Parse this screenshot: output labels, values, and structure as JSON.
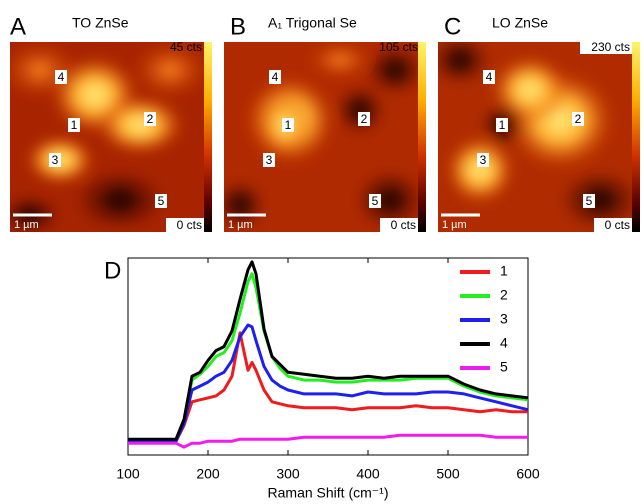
{
  "panels": [
    {
      "letter": "A",
      "title": "TO ZnSe",
      "max_label": "45 cts",
      "min_label": "0 cts",
      "scale_label": "1 µm",
      "points": [
        "4",
        "1",
        "2",
        "3",
        "5"
      ]
    },
    {
      "letter": "B",
      "title": "A₁ Trigonal Se",
      "max_label": "105 cts",
      "min_label": "0 cts",
      "scale_label": "1 µm",
      "points": [
        "4",
        "1",
        "2",
        "3",
        "5"
      ]
    },
    {
      "letter": "C",
      "title": "LO ZnSe",
      "max_label": "230 cts",
      "min_label": "0 cts",
      "scale_label": "1 µm",
      "points": [
        "4",
        "1",
        "2",
        "3",
        "5"
      ]
    }
  ],
  "chart_data": {
    "type": "line",
    "label": "D",
    "x_label": "Raman Shift (cm⁻¹)",
    "x": [
      100,
      120,
      140,
      160,
      170,
      180,
      190,
      200,
      210,
      220,
      230,
      240,
      250,
      255,
      260,
      270,
      280,
      290,
      300,
      320,
      340,
      360,
      380,
      400,
      420,
      440,
      460,
      480,
      500,
      520,
      540,
      560,
      580,
      600
    ],
    "xlim": [
      100,
      600
    ],
    "xticks": [
      100,
      200,
      300,
      400,
      500,
      600
    ],
    "ylim": [
      0,
      1
    ],
    "legend": "upper right",
    "series": [
      {
        "name": "1",
        "color": "#ee1c1c",
        "values": [
          0.07,
          0.07,
          0.07,
          0.07,
          0.15,
          0.27,
          0.28,
          0.29,
          0.3,
          0.33,
          0.4,
          0.62,
          0.43,
          0.47,
          0.43,
          0.33,
          0.27,
          0.26,
          0.25,
          0.24,
          0.24,
          0.24,
          0.23,
          0.24,
          0.24,
          0.24,
          0.25,
          0.24,
          0.24,
          0.23,
          0.22,
          0.23,
          0.22,
          0.22
        ]
      },
      {
        "name": "2",
        "color": "#22ee22",
        "values": [
          0.07,
          0.07,
          0.07,
          0.07,
          0.17,
          0.38,
          0.41,
          0.45,
          0.5,
          0.52,
          0.58,
          0.72,
          0.88,
          0.92,
          0.85,
          0.63,
          0.5,
          0.44,
          0.4,
          0.38,
          0.38,
          0.37,
          0.37,
          0.38,
          0.38,
          0.38,
          0.39,
          0.39,
          0.39,
          0.35,
          0.32,
          0.3,
          0.29,
          0.28
        ]
      },
      {
        "name": "3",
        "color": "#1f1fee",
        "values": [
          0.07,
          0.07,
          0.07,
          0.07,
          0.16,
          0.33,
          0.35,
          0.37,
          0.4,
          0.42,
          0.48,
          0.6,
          0.66,
          0.65,
          0.58,
          0.45,
          0.38,
          0.35,
          0.33,
          0.31,
          0.31,
          0.31,
          0.3,
          0.32,
          0.31,
          0.31,
          0.31,
          0.32,
          0.32,
          0.31,
          0.29,
          0.27,
          0.25,
          0.23
        ]
      },
      {
        "name": "4",
        "color": "#000000",
        "values": [
          0.08,
          0.08,
          0.08,
          0.08,
          0.18,
          0.4,
          0.42,
          0.48,
          0.53,
          0.55,
          0.63,
          0.79,
          0.94,
          0.98,
          0.92,
          0.64,
          0.5,
          0.46,
          0.42,
          0.41,
          0.4,
          0.39,
          0.39,
          0.4,
          0.39,
          0.4,
          0.4,
          0.4,
          0.4,
          0.36,
          0.33,
          0.31,
          0.3,
          0.29
        ]
      },
      {
        "name": "5",
        "color": "#ee1cee",
        "values": [
          0.06,
          0.06,
          0.06,
          0.06,
          0.04,
          0.06,
          0.06,
          0.07,
          0.07,
          0.07,
          0.07,
          0.08,
          0.08,
          0.08,
          0.08,
          0.08,
          0.08,
          0.08,
          0.08,
          0.09,
          0.09,
          0.09,
          0.09,
          0.09,
          0.09,
          0.1,
          0.1,
          0.1,
          0.1,
          0.1,
          0.1,
          0.09,
          0.09,
          0.09
        ]
      }
    ]
  }
}
